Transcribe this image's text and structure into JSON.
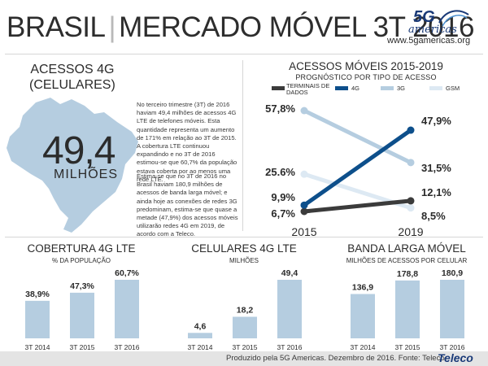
{
  "header": {
    "title_left": "BRASIL",
    "title_right": "MERCADO MÓVEL 3T 2016",
    "logo_brand": "5G",
    "logo_name": "americas",
    "logo_url": "www.5gamericas.org"
  },
  "map_panel": {
    "title_line1": "ACESSOS 4G",
    "title_line2": "(CELULARES)",
    "value": "49,4",
    "unit": "MILHÕES"
  },
  "paragraphs": {
    "p1": "No terceiro trimestre (3T) de 2016 haviam 49,4 milhões de acessos 4G LTE de telefones móveis. Esta quantidade representa um aumento de 171% em relação ao 3T de 2015. A cobertura LTE continuou expandindo e no 3T de 2016 estimou-se que 60,7% da população estava coberta por ao menos uma rede LTE.",
    "p2": "Estima-se que no 3T de 2016 no Brasil haviam 180,9 milhões de acessos de banda larga móvel; e ainda hoje as conexões de redes 3G predominam, estima-se que quase a metade (47,9%) dos acessos móveis utilizarão redes 4G em 2019, de acordo com a Teleco."
  },
  "line_chart_text": {
    "title": "ACESSOS MÓVEIS 2015-2019",
    "subtitle": "PROGNÓSTICO POR TIPO DE ACESSO"
  },
  "bar_charts_text": [
    {
      "title": "COBERTURA 4G LTE",
      "subtitle": "% DA POPULAÇÃO"
    },
    {
      "title": "CELULARES 4G LTE",
      "subtitle": "MILHÕES"
    },
    {
      "title": "BANDA LARGA MÓVEL",
      "subtitle": "MILHÕES DE ACESSOS POR CELULAR"
    }
  ],
  "colors": {
    "terminais": "#3b3b3b",
    "g4": "#0d4f8b",
    "g3": "#b5cde0",
    "gsm": "#dde9f3",
    "bar": "#b5cde0",
    "map": "#b5cde0"
  },
  "icons": [
    "brazil-map",
    "5g-americas-logo",
    "teleco-logo"
  ],
  "chart_data": [
    {
      "type": "line",
      "title": "ACESSOS MÓVEIS 2015-2019",
      "subtitle": "PROGNÓSTICO POR TIPO DE ACESSO",
      "x": [
        "2015",
        "2019"
      ],
      "legend_position": "top",
      "series": [
        {
          "name": "TERMINAIS DE DADOS",
          "values": [
            6.7,
            12.1
          ],
          "labels": [
            "6,7%",
            "12,1%"
          ],
          "color": "#3b3b3b"
        },
        {
          "name": "4G",
          "values": [
            9.9,
            47.9
          ],
          "labels": [
            "9,9%",
            "47,9%"
          ],
          "color": "#0d4f8b"
        },
        {
          "name": "3G",
          "values": [
            57.8,
            31.5
          ],
          "labels": [
            "57,8%",
            "31,5%"
          ],
          "color": "#b5cde0"
        },
        {
          "name": "GSM",
          "values": [
            25.6,
            8.5
          ],
          "labels": [
            "25.6%",
            "8,5%"
          ],
          "color": "#dde9f3"
        }
      ]
    },
    {
      "type": "bar",
      "title": "COBERTURA 4G LTE",
      "subtitle": "% DA POPULAÇÃO",
      "categories": [
        "3T 2014",
        "3T 2015",
        "3T 2016"
      ],
      "values": [
        38.9,
        47.3,
        60.7
      ],
      "labels": [
        "38,9%",
        "47,3%",
        "60,7%"
      ]
    },
    {
      "type": "bar",
      "title": "CELULARES 4G LTE",
      "subtitle": "MILHÕES",
      "categories": [
        "3T 2014",
        "3T 2015",
        "3T 2016"
      ],
      "values": [
        4.6,
        18.2,
        49.4
      ],
      "labels": [
        "4,6",
        "18,2",
        "49,4"
      ]
    },
    {
      "type": "bar",
      "title": "BANDA LARGA MÓVEL",
      "subtitle": "MILHÕES DE ACESSOS POR CELULAR",
      "categories": [
        "3T 2014",
        "3T 2015",
        "3T 2016"
      ],
      "values": [
        136.9,
        178.8,
        180.9
      ],
      "labels": [
        "136,9",
        "178,8",
        "180,9"
      ]
    }
  ],
  "footer": {
    "credit": "Produzido pela 5G Americas. Dezembro de 2016. Fonte: Teleco",
    "logo": "Teleco"
  }
}
